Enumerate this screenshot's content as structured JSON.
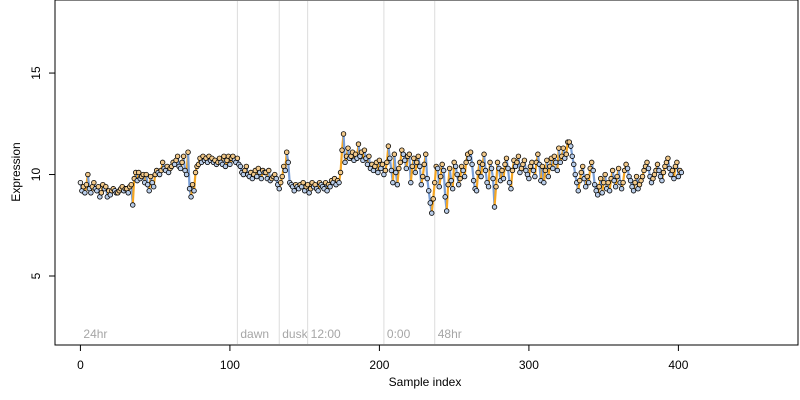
{
  "chart_data": {
    "type": "line",
    "title": "",
    "xlabel": "Sample index",
    "ylabel": "Expression",
    "xlim": [
      -17,
      480
    ],
    "ylim": [
      1.6,
      18.6
    ],
    "x_ticks": [
      0,
      100,
      200,
      300,
      400
    ],
    "y_ticks": [
      5,
      10,
      15
    ],
    "grid": false,
    "legend": "none",
    "colors": {
      "up": "#f5a623",
      "down": "#7a9fd6",
      "point_fill": "#e7e7e7",
      "point_stroke": "#000000",
      "phase_line": "#dcdcdc",
      "phase_label": "#a6a6a6"
    },
    "phase_markers": [
      {
        "label": "24hr",
        "x": 0,
        "line": false
      },
      {
        "label": "dawn",
        "x": 105,
        "line": true
      },
      {
        "label": "dusk",
        "x": 133,
        "line": true
      },
      {
        "label": "12:00",
        "x": 152,
        "line": true
      },
      {
        "label": "0:00",
        "x": 203,
        "line": true
      },
      {
        "label": "48hr",
        "x": 237,
        "line": true
      }
    ],
    "series": [
      {
        "x_start": 0,
        "x_step": 1,
        "values": [
          9.6,
          9.2,
          9.4,
          9.1,
          9.5,
          10.0,
          9.3,
          9.1,
          9.4,
          9.6,
          9.3,
          9.2,
          9.4,
          8.9,
          9.1,
          9.5,
          9.3,
          9.4,
          8.9,
          9.2,
          9.0,
          9.2,
          9.3,
          9.2,
          9.1,
          9.1,
          9.2,
          9.3,
          9.4,
          9.2,
          9.3,
          9.3,
          9.1,
          9.4,
          9.5,
          8.5,
          9.8,
          10.1,
          9.7,
          10.1,
          9.8,
          9.9,
          10.0,
          9.6,
          10.0,
          9.5,
          9.2,
          9.9,
          9.6,
          9.4,
          10.0,
          10.2,
          10.1,
          10.0,
          10.2,
          10.6,
          10.3,
          10.2,
          10.4,
          10.1,
          10.3,
          10.4,
          10.6,
          10.5,
          10.7,
          10.9,
          10.4,
          10.3,
          10.6,
          10.9,
          10.2,
          10.0,
          11.1,
          9.3,
          8.9,
          9.5,
          9.2,
          10.1,
          10.4,
          10.5,
          10.8,
          10.6,
          10.9,
          10.7,
          10.8,
          10.6,
          10.9,
          10.7,
          10.8,
          10.6,
          10.7,
          10.5,
          10.6,
          10.8,
          10.6,
          10.5,
          10.9,
          10.4,
          10.7,
          10.9,
          10.5,
          10.8,
          10.9,
          10.7,
          10.6,
          10.8,
          10.5,
          10.4,
          10.1,
          10.0,
          10.2,
          10.4,
          10.0,
          9.9,
          10.1,
          9.8,
          10.0,
          10.2,
          9.9,
          10.3,
          10.1,
          9.8,
          10.2,
          10.1,
          10.1,
          9.8,
          10.2,
          9.7,
          9.8,
          9.9,
          10.0,
          9.8,
          9.5,
          9.3,
          9.6,
          9.9,
          10.4,
          10.2,
          11.1,
          10.6,
          9.6,
          9.5,
          9.4,
          9.2,
          9.5,
          9.4,
          9.3,
          9.5,
          9.4,
          9.6,
          9.2,
          9.4,
          9.5,
          9.1,
          9.3,
          9.6,
          9.4,
          9.5,
          9.3,
          9.2,
          9.6,
          9.5,
          9.4,
          9.3,
          9.6,
          9.2,
          9.5,
          9.4,
          9.7,
          9.6,
          9.8,
          9.5,
          9.7,
          9.6,
          10.1,
          11.2,
          12.0,
          10.6,
          10.9,
          11.3,
          10.8,
          10.9,
          11.1,
          10.7,
          11.0,
          10.8,
          11.5,
          10.9,
          11.1,
          10.7,
          11.2,
          10.8,
          10.5,
          10.9,
          10.3,
          10.5,
          10.2,
          10.4,
          10.6,
          10.1,
          10.7,
          10.3,
          10.5,
          10.0,
          10.2,
          10.6,
          11.4,
          10.8,
          10.2,
          9.6,
          11.0,
          10.1,
          9.5,
          10.3,
          10.6,
          11.2,
          11.0,
          10.7,
          10.3,
          10.9,
          11.0,
          9.6,
          10.4,
          10.8,
          10.1,
          10.6,
          10.9,
          10.4,
          9.5,
          9.9,
          10.5,
          11.0,
          9.8,
          9.2,
          8.6,
          8.1,
          8.8,
          9.6,
          10.4,
          10.3,
          9.4,
          9.9,
          10.5,
          10.2,
          8.9,
          8.2,
          9.5,
          10.3,
          9.7,
          9.3,
          10.6,
          10.4,
          10.0,
          9.5,
          9.8,
          10.4,
          10.2,
          9.9,
          10.6,
          11.0,
          10.8,
          11.1,
          10.5,
          9.7,
          9.3,
          9.2,
          10.1,
          10.6,
          9.9,
          10.5,
          11.0,
          10.2,
          9.6,
          9.4,
          10.6,
          10.3,
          9.8,
          8.4,
          9.4,
          10.6,
          10.3,
          9.7,
          10.2,
          9.8,
          10.5,
          10.8,
          10.3,
          9.6,
          9.3,
          10.2,
          10.7,
          10.4,
          10.6,
          10.9,
          10.1,
          10.3,
          10.5,
          10.7,
          10.2,
          10.0,
          9.8,
          10.4,
          10.6,
          10.2,
          9.9,
          10.6,
          11.0,
          10.5,
          9.7,
          10.4,
          9.6,
          10.2,
          10.7,
          9.9,
          10.4,
          10.8,
          10.3,
          10.9,
          10.6,
          10.2,
          11.3,
          10.6,
          10.9,
          11.3,
          10.8,
          11.0,
          11.6,
          11.6,
          11.4,
          10.9,
          10.5,
          10.0,
          9.6,
          9.2,
          9.7,
          10.1,
          10.4,
          9.8,
          9.4,
          9.9,
          9.6,
          10.3,
          10.6,
          10.2,
          9.5,
          9.2,
          9.0,
          9.4,
          9.8,
          9.1,
          9.6,
          10.0,
          9.3,
          9.6,
          9.2,
          9.8,
          10.2,
          9.7,
          9.4,
          9.9,
          10.3,
          9.6,
          9.3,
          9.6,
          10.2,
          10.5,
          10.3,
          9.9,
          9.7,
          9.4,
          9.2,
          9.6,
          9.9,
          9.3,
          9.5,
          9.7,
          9.9,
          10.2,
          10.4,
          10.6,
          10.3,
          9.9,
          9.6,
          9.8,
          10.0,
          10.2,
          10.5,
          10.2,
          9.9,
          9.7,
          10.1,
          10.4,
          10.6,
          10.8,
          10.3,
          10.0,
          10.2,
          9.8,
          10.4,
          10.6,
          9.9,
          10.2,
          10.1
        ]
      }
    ]
  }
}
